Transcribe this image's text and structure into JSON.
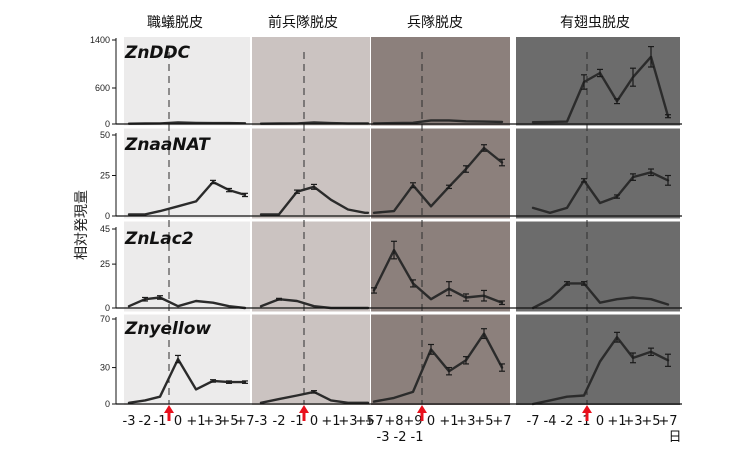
{
  "stage_headers": [
    "職蟻脱皮",
    "前兵隊脱皮",
    "兵隊脱皮",
    "有翅虫脱皮"
  ],
  "y_axis_label": "相対発現量",
  "x_unit": "日",
  "colors": {
    "panel_fills": [
      "#ecebeb",
      "#cbc3c1",
      "#8c807c",
      "#6c6c6c"
    ],
    "line": "#2b2b2b",
    "arrow": "#e8101c"
  },
  "x_axis_labels": [
    {
      "group": "職蟻脱皮",
      "row1": [
        "-3",
        "-2",
        "-1",
        "0",
        "+1",
        "+3",
        "+5",
        "+7"
      ],
      "row2": []
    },
    {
      "group": "前兵隊脱皮",
      "row1": [
        "-3",
        "-2",
        "-1",
        "0",
        "+1",
        "+3",
        "+5",
        "+7"
      ],
      "row2": []
    },
    {
      "group": "兵隊脱皮",
      "row1": [
        "+8",
        "+9",
        "0",
        "+1",
        "+3",
        "+5",
        "+7"
      ],
      "row2": [
        "-3",
        "-2",
        "-1"
      ]
    },
    {
      "group": "有翅虫脱皮",
      "row1": [
        "-7",
        "-4",
        "-2",
        "-1",
        "0",
        "+1",
        "+3",
        "+5",
        "+7"
      ],
      "row2": []
    }
  ],
  "chart_data": [
    {
      "type": "line",
      "gene": "ZnDDC",
      "ylim": [
        0,
        1400
      ],
      "yticks": [
        0,
        600,
        1400
      ],
      "series": [
        {
          "group": "職蟻脱皮",
          "values": [
            5,
            8,
            10,
            25,
            18,
            15,
            15,
            12
          ],
          "errors": [
            0,
            0,
            0,
            0,
            0,
            0,
            0,
            0
          ]
        },
        {
          "group": "前兵隊脱皮",
          "values": [
            5,
            8,
            10,
            25,
            15,
            10,
            10,
            10
          ],
          "errors": [
            0,
            0,
            0,
            0,
            0,
            0,
            0,
            0
          ]
        },
        {
          "group": "兵隊脱皮",
          "values": [
            10,
            15,
            20,
            60,
            60,
            45,
            40,
            35
          ],
          "errors": [
            0,
            0,
            0,
            0,
            0,
            0,
            0,
            0
          ]
        },
        {
          "group": "有翅虫脱皮",
          "values": [
            30,
            35,
            40,
            700,
            850,
            380,
            780,
            1120,
            130
          ],
          "errors": [
            0,
            0,
            0,
            120,
            60,
            40,
            150,
            170,
            25
          ]
        }
      ]
    },
    {
      "type": "line",
      "gene": "ZnaaNAT",
      "ylim": [
        0,
        50
      ],
      "yticks": [
        0,
        25,
        50
      ],
      "series": [
        {
          "group": "職蟻脱皮",
          "values": [
            1,
            1,
            3,
            6,
            9,
            21,
            16,
            13
          ],
          "errors": [
            0,
            0,
            0,
            0,
            0,
            1,
            1,
            1
          ]
        },
        {
          "group": "前兵隊脱皮",
          "values": [
            1,
            1,
            15,
            18,
            10,
            4,
            2,
            2
          ],
          "errors": [
            0,
            0,
            1,
            1.5,
            0,
            0,
            0,
            0
          ]
        },
        {
          "group": "兵隊脱皮",
          "values": [
            2,
            3,
            19,
            6,
            18,
            29,
            42,
            33
          ],
          "errors": [
            0,
            0,
            1.5,
            0,
            1,
            2,
            2,
            2
          ]
        },
        {
          "group": "有翅虫脱皮",
          "values": [
            5,
            2,
            5,
            22,
            8,
            12,
            24,
            27,
            22
          ],
          "errors": [
            0,
            0,
            0,
            1,
            0,
            1,
            2,
            2,
            3
          ]
        }
      ]
    },
    {
      "type": "line",
      "gene": "ZnLac2",
      "ylim": [
        0,
        45
      ],
      "yticks": [
        0,
        25,
        45
      ],
      "series": [
        {
          "group": "職蟻脱皮",
          "values": [
            1,
            5,
            6,
            1,
            4,
            3,
            1,
            0
          ],
          "errors": [
            0,
            1,
            1,
            0,
            0,
            0,
            0,
            0
          ]
        },
        {
          "group": "前兵隊脱皮",
          "values": [
            1,
            5,
            4,
            1,
            0,
            0,
            0,
            0
          ],
          "errors": [
            0,
            0.5,
            0,
            0,
            0,
            0,
            0,
            0
          ]
        },
        {
          "group": "兵隊脱皮",
          "values": [
            10,
            33,
            14,
            5,
            11,
            6,
            7,
            3
          ],
          "errors": [
            1.5,
            5,
            2,
            0,
            4,
            2,
            3,
            1
          ]
        },
        {
          "group": "有翅虫脱皮",
          "values": [
            0,
            5,
            14,
            14,
            3,
            5,
            6,
            5,
            2
          ],
          "errors": [
            0,
            0,
            1,
            1,
            0,
            0,
            0,
            0,
            0
          ]
        }
      ]
    },
    {
      "type": "line",
      "gene": "Znyellow",
      "ylim": [
        0,
        70
      ],
      "yticks": [
        0,
        30,
        70
      ],
      "series": [
        {
          "group": "職蟻脱皮",
          "values": [
            1,
            3,
            6,
            37,
            12,
            19,
            18,
            18
          ],
          "errors": [
            0,
            0,
            0,
            3,
            0,
            1,
            1,
            1
          ]
        },
        {
          "group": "前兵隊脱皮",
          "values": [
            1,
            4,
            7,
            10,
            3,
            1,
            1,
            1
          ],
          "errors": [
            0,
            0,
            0,
            1,
            0,
            0,
            0,
            0
          ]
        },
        {
          "group": "兵隊脱皮",
          "values": [
            2,
            5,
            10,
            45,
            27,
            36,
            58,
            30
          ],
          "errors": [
            0,
            0,
            0,
            4,
            3,
            3,
            4,
            3
          ]
        },
        {
          "group": "有翅虫脱皮",
          "values": [
            0,
            3,
            6,
            7,
            35,
            55,
            38,
            43,
            36
          ],
          "errors": [
            0,
            0,
            0,
            0,
            0,
            4,
            4,
            3,
            5
          ]
        }
      ]
    }
  ]
}
